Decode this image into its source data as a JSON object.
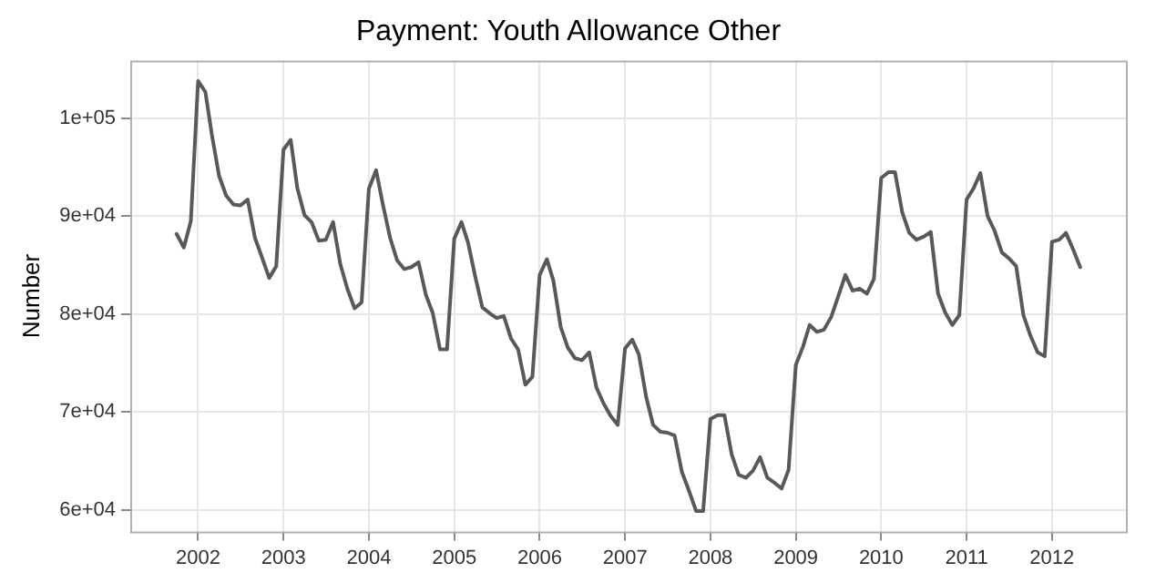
{
  "chart_data": {
    "type": "line",
    "title": "Payment: Youth Allowance Other",
    "ylabel": "Number",
    "x": [
      "2001-10",
      "2001-11",
      "2001-12",
      "2002-01",
      "2002-02",
      "2002-03",
      "2002-04",
      "2002-05",
      "2002-06",
      "2002-07",
      "2002-08",
      "2002-09",
      "2002-10",
      "2002-11",
      "2002-12",
      "2003-01",
      "2003-02",
      "2003-03",
      "2003-04",
      "2003-05",
      "2003-06",
      "2003-07",
      "2003-08",
      "2003-09",
      "2003-10",
      "2003-11",
      "2003-12",
      "2004-01",
      "2004-02",
      "2004-03",
      "2004-04",
      "2004-05",
      "2004-06",
      "2004-07",
      "2004-08",
      "2004-09",
      "2004-10",
      "2004-11",
      "2004-12",
      "2005-01",
      "2005-02",
      "2005-03",
      "2005-04",
      "2005-05",
      "2005-06",
      "2005-07",
      "2005-08",
      "2005-09",
      "2005-10",
      "2005-11",
      "2005-12",
      "2006-01",
      "2006-02",
      "2006-03",
      "2006-04",
      "2006-05",
      "2006-06",
      "2006-07",
      "2006-08",
      "2006-09",
      "2006-10",
      "2006-11",
      "2006-12",
      "2007-01",
      "2007-02",
      "2007-03",
      "2007-04",
      "2007-05",
      "2007-06",
      "2007-07",
      "2007-08",
      "2007-09",
      "2007-10",
      "2007-11",
      "2007-12",
      "2008-01",
      "2008-02",
      "2008-03",
      "2008-04",
      "2008-05",
      "2008-06",
      "2008-07",
      "2008-08",
      "2008-09",
      "2008-10",
      "2008-11",
      "2008-12",
      "2009-01",
      "2009-02",
      "2009-03",
      "2009-04",
      "2009-05",
      "2009-06",
      "2009-07",
      "2009-08",
      "2009-09",
      "2009-10",
      "2009-11",
      "2009-12",
      "2010-01",
      "2010-02",
      "2010-03",
      "2010-04",
      "2010-05",
      "2010-06",
      "2010-07",
      "2010-08",
      "2010-09",
      "2010-10",
      "2010-11",
      "2010-12",
      "2011-01",
      "2011-02",
      "2011-03",
      "2011-04",
      "2011-05",
      "2011-06",
      "2011-07",
      "2011-08",
      "2011-09",
      "2011-10",
      "2011-11",
      "2011-12",
      "2012-01",
      "2012-02",
      "2012-03",
      "2012-04",
      "2012-05"
    ],
    "series": [
      {
        "color": "#595959",
        "values": [
          88200,
          86800,
          89500,
          103800,
          102700,
          98300,
          94100,
          92100,
          91200,
          91100,
          91700,
          87800,
          85800,
          83700,
          84900,
          96800,
          97800,
          92900,
          90100,
          89400,
          87500,
          87600,
          89400,
          85100,
          82600,
          80600,
          81200,
          92800,
          94700,
          91200,
          87800,
          85500,
          84600,
          84800,
          85300,
          82000,
          80100,
          76400,
          76400,
          87700,
          89400,
          87300,
          83800,
          80700,
          80100,
          79600,
          79800,
          77500,
          76400,
          72800,
          73600,
          84000,
          85600,
          83400,
          78700,
          76600,
          75500,
          75300,
          76100,
          72500,
          70900,
          69600,
          68700,
          76500,
          77400,
          75900,
          71600,
          68700,
          68000,
          67900,
          67600,
          63900,
          62000,
          59900,
          59900,
          69300,
          69700,
          69700,
          65700,
          63600,
          63300,
          64000,
          65400,
          63300,
          62800,
          62200,
          64100,
          74800,
          76700,
          78900,
          78200,
          78400,
          79700,
          81800,
          84000,
          82400,
          82600,
          82100,
          83600,
          93900,
          94500,
          94500,
          90400,
          88300,
          87600,
          87900,
          88400,
          82100,
          80200,
          78900,
          79900,
          91700,
          92900,
          94400,
          90000,
          88500,
          86300,
          85700,
          84900,
          79900,
          77800,
          76100,
          75700,
          87400,
          87600,
          88300,
          86600,
          84800
        ]
      }
    ],
    "xlim": [
      "2001-03-17",
      "2012-11-13"
    ],
    "xticks": [
      "2002",
      "2003",
      "2004",
      "2005",
      "2006",
      "2007",
      "2008",
      "2009",
      "2010",
      "2011",
      "2012"
    ],
    "ylim": [
      57800,
      105900
    ],
    "yticks": [
      {
        "value": 60000,
        "label": "6e+04"
      },
      {
        "value": 70000,
        "label": "7e+04"
      },
      {
        "value": 80000,
        "label": "8e+04"
      },
      {
        "value": 90000,
        "label": "9e+04"
      },
      {
        "value": 100000,
        "label": "1e+05"
      }
    ],
    "grid": true,
    "legend": false,
    "marker": "none",
    "line_style": "solid"
  }
}
